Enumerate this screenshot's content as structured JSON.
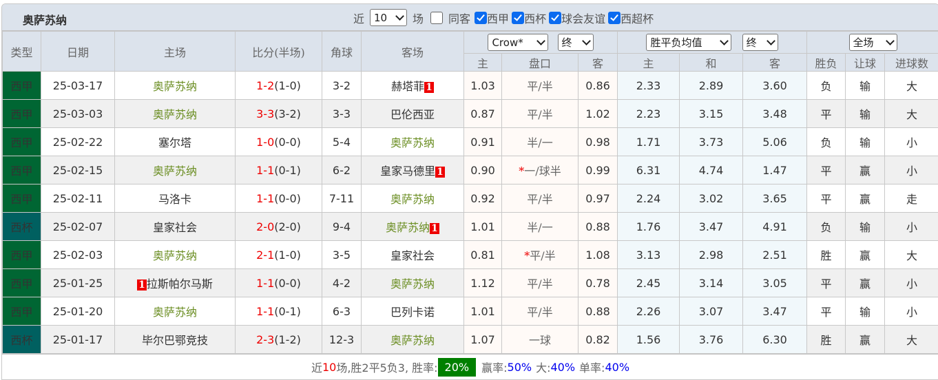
{
  "title": "奥萨苏纳",
  "filters": {
    "prefix": "近",
    "count": "10",
    "suffix": "场",
    "same_label": "同客",
    "checks": [
      {
        "label": "西甲",
        "checked": true
      },
      {
        "label": "西杯",
        "checked": true
      },
      {
        "label": "球会友谊",
        "checked": true
      },
      {
        "label": "西超杯",
        "checked": true
      }
    ]
  },
  "headers": {
    "type": "类型",
    "date": "日期",
    "home": "主场",
    "score": "比分(半场)",
    "corner": "角球",
    "away": "客场",
    "company": "Crow*",
    "company_mode": "终",
    "euro": "胜平负均值",
    "euro_mode": "终",
    "scope": "全场",
    "sub": [
      "主",
      "盘口",
      "客",
      "主",
      "和",
      "客",
      "胜负",
      "让球",
      "进球数"
    ]
  },
  "colors": {
    "西甲": "#006633",
    "西杯": "#006060",
    "highlight": "#6b8e23"
  },
  "rows": [
    {
      "type": "西甲",
      "date": "25-03-17",
      "home": "奥萨苏纳",
      "home_badge": "",
      "full": "1-2",
      "half": "(1-0)",
      "corner": "3-2",
      "away": "赫塔菲",
      "away_badge": "1",
      "h": "1.03",
      "line_star": "",
      "line": "平/半",
      "a": "0.86",
      "w": "2.33",
      "d": "2.89",
      "l": "3.60",
      "r1": "负",
      "r2": "输",
      "r3": "大"
    },
    {
      "type": "西甲",
      "date": "25-03-03",
      "home": "奥萨苏纳",
      "home_badge": "",
      "full": "3-3",
      "half": "(3-2)",
      "corner": "3-3",
      "away": "巴伦西亚",
      "away_badge": "",
      "h": "0.87",
      "line_star": "",
      "line": "平/半",
      "a": "1.02",
      "w": "2.23",
      "d": "3.15",
      "l": "3.48",
      "r1": "平",
      "r2": "输",
      "r3": "大"
    },
    {
      "type": "西甲",
      "date": "25-02-22",
      "home": "塞尔塔",
      "home_badge": "",
      "full": "1-0",
      "half": "(0-0)",
      "corner": "5-4",
      "away": "奥萨苏纳",
      "away_badge": "",
      "h": "0.91",
      "line_star": "",
      "line": "半/一",
      "a": "0.98",
      "w": "1.71",
      "d": "3.73",
      "l": "5.06",
      "r1": "负",
      "r2": "输",
      "r3": "小"
    },
    {
      "type": "西甲",
      "date": "25-02-15",
      "home": "奥萨苏纳",
      "home_badge": "",
      "full": "1-1",
      "half": "(0-1)",
      "corner": "6-2",
      "away": "皇家马德里",
      "away_badge": "1",
      "h": "0.90",
      "line_star": "*",
      "line": "一/球半",
      "a": "0.99",
      "w": "6.31",
      "d": "4.74",
      "l": "1.47",
      "r1": "平",
      "r2": "赢",
      "r3": "小"
    },
    {
      "type": "西甲",
      "date": "25-02-11",
      "home": "马洛卡",
      "home_badge": "",
      "full": "1-1",
      "half": "(0-0)",
      "corner": "7-11",
      "away": "奥萨苏纳",
      "away_badge": "",
      "h": "0.92",
      "line_star": "",
      "line": "平/半",
      "a": "0.97",
      "w": "2.24",
      "d": "3.02",
      "l": "3.65",
      "r1": "平",
      "r2": "赢",
      "r3": "走"
    },
    {
      "type": "西杯",
      "date": "25-02-07",
      "home": "皇家社会",
      "home_badge": "",
      "full": "2-0",
      "half": "(2-0)",
      "corner": "9-4",
      "away": "奥萨苏纳",
      "away_badge": "1",
      "h": "1.01",
      "line_star": "",
      "line": "半/一",
      "a": "0.88",
      "w": "1.76",
      "d": "3.47",
      "l": "4.91",
      "r1": "负",
      "r2": "输",
      "r3": "小"
    },
    {
      "type": "西甲",
      "date": "25-02-03",
      "home": "奥萨苏纳",
      "home_badge": "",
      "full": "2-1",
      "half": "(1-0)",
      "corner": "3-5",
      "away": "皇家社会",
      "away_badge": "",
      "h": "0.81",
      "line_star": "*",
      "line": "平/半",
      "a": "1.08",
      "w": "3.13",
      "d": "2.98",
      "l": "2.51",
      "r1": "胜",
      "r2": "赢",
      "r3": "大"
    },
    {
      "type": "西甲",
      "date": "25-01-25",
      "home": "拉斯帕尔马斯",
      "home_badge": "1",
      "full": "1-1",
      "half": "(0-0)",
      "corner": "4-2",
      "away": "奥萨苏纳",
      "away_badge": "",
      "h": "1.12",
      "line_star": "",
      "line": "平/半",
      "a": "0.78",
      "w": "2.45",
      "d": "3.14",
      "l": "3.05",
      "r1": "平",
      "r2": "赢",
      "r3": "小"
    },
    {
      "type": "西甲",
      "date": "25-01-20",
      "home": "奥萨苏纳",
      "home_badge": "",
      "full": "1-1",
      "half": "(0-1)",
      "corner": "6-3",
      "away": "巴列卡诺",
      "away_badge": "",
      "h": "1.01",
      "line_star": "",
      "line": "平/半",
      "a": "0.88",
      "w": "2.26",
      "d": "3.07",
      "l": "3.47",
      "r1": "平",
      "r2": "输",
      "r3": "小"
    },
    {
      "type": "西杯",
      "date": "25-01-17",
      "home": "毕尔巴鄂竞技",
      "home_badge": "",
      "full": "2-3",
      "half": "(1-2)",
      "corner": "12-3",
      "away": "奥萨苏纳",
      "away_badge": "",
      "h": "1.07",
      "line_star": "",
      "line": "一球",
      "a": "0.82",
      "w": "1.56",
      "d": "3.76",
      "l": "6.30",
      "r1": "胜",
      "r2": "赢",
      "r3": "大"
    }
  ],
  "summary": {
    "p1": "近",
    "n": "10",
    "p2": "场,胜2平5负3, 胜率:",
    "win_rate": "20%",
    "cover_label": "赢率:",
    "cover": "50%",
    "over_label": "大:",
    "over": "40%",
    "odd_label": "单率:",
    "odd": "40%"
  }
}
